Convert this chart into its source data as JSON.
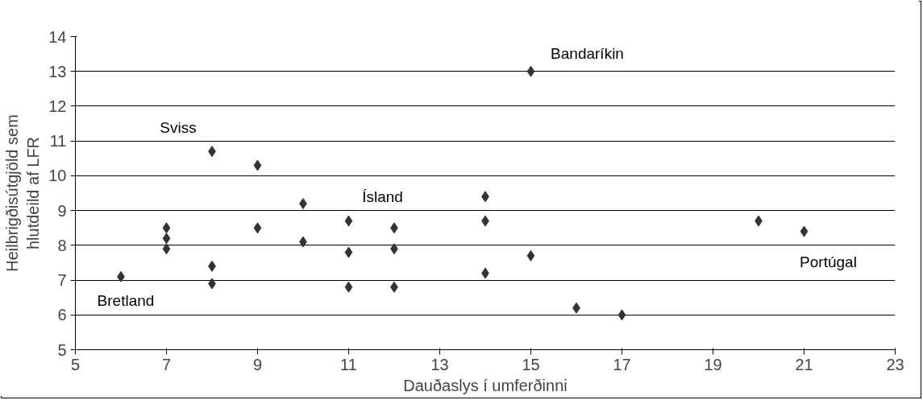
{
  "chart_data": {
    "type": "scatter",
    "xlabel": "Dauðaslys í umferðinni",
    "ylabel": "Heilbrigðisútgjöld sem\nhlutdeild af LFR",
    "x": [
      6,
      7,
      7,
      7,
      8,
      8,
      8,
      9,
      9,
      10,
      10,
      11,
      11,
      11,
      12,
      12,
      12,
      14,
      14,
      14,
      15,
      15,
      16,
      17,
      20,
      21
    ],
    "series": [
      {
        "color": "#333333",
        "values": [
          7.1,
          8.5,
          8.2,
          7.9,
          10.7,
          7.4,
          6.9,
          10.3,
          8.5,
          9.2,
          8.1,
          8.7,
          7.8,
          6.8,
          8.5,
          7.9,
          6.8,
          9.4,
          8.7,
          7.2,
          13,
          7.7,
          6.2,
          6.0,
          8.7,
          8.4
        ]
      }
    ],
    "xlim": [
      5,
      23
    ],
    "xticks": [
      5,
      7,
      9,
      11,
      13,
      15,
      17,
      19,
      21,
      23
    ],
    "ylim": [
      5,
      14
    ],
    "yticks": [
      5,
      6,
      7,
      8,
      9,
      10,
      11,
      12,
      13,
      14
    ],
    "grid": "y",
    "marker": "diamond",
    "annotations": [
      {
        "text": "Sviss",
        "x": 8,
        "y": 10.7
      },
      {
        "text": "Bretland",
        "x": 6,
        "y": 7.1
      },
      {
        "text": "Ísland",
        "x": 11,
        "y": 8.7
      },
      {
        "text": "Bandaríkin",
        "x": 15,
        "y": 13
      },
      {
        "text": "Portúgal",
        "x": 21,
        "y": 8.4
      }
    ]
  }
}
